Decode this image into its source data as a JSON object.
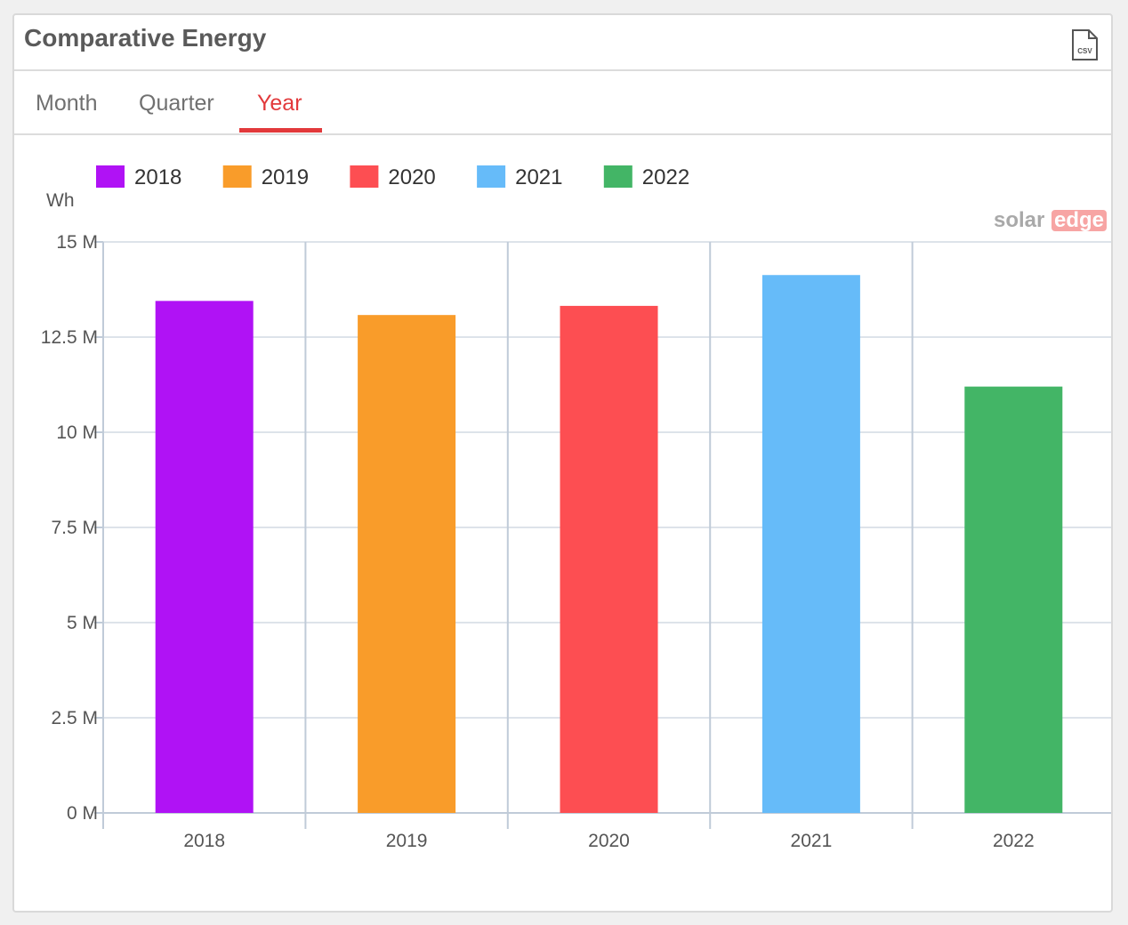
{
  "widget": {
    "title": "Comparative Energy",
    "export_icon": "csv-file-icon"
  },
  "tabs": [
    {
      "label": "Month",
      "active": false
    },
    {
      "label": "Quarter",
      "active": false
    },
    {
      "label": "Year",
      "active": true
    }
  ],
  "colors": {
    "accent": "#e2393b",
    "grid": "#dde3ea",
    "axis": "#c0cbd8"
  },
  "watermark": {
    "text_a": "solar",
    "text_b": "edge"
  },
  "chart_data": {
    "type": "bar",
    "ylabel": "Wh",
    "xlabel": "",
    "ylim": [
      0,
      15000000
    ],
    "yticks": [
      {
        "value": 0,
        "label": "0 M"
      },
      {
        "value": 2500000,
        "label": "2.5 M"
      },
      {
        "value": 5000000,
        "label": "5 M"
      },
      {
        "value": 7500000,
        "label": "7.5 M"
      },
      {
        "value": 10000000,
        "label": "10 M"
      },
      {
        "value": 12500000,
        "label": "12.5 M"
      },
      {
        "value": 15000000,
        "label": "15 M"
      }
    ],
    "categories": [
      "2018",
      "2019",
      "2020",
      "2021",
      "2022"
    ],
    "series": [
      {
        "name": "2018",
        "color": "#b012f5",
        "values": [
          13450000,
          null,
          null,
          null,
          null
        ]
      },
      {
        "name": "2019",
        "color": "#f99c2a",
        "values": [
          null,
          13080000,
          null,
          null,
          null
        ]
      },
      {
        "name": "2020",
        "color": "#fd4e52",
        "values": [
          null,
          null,
          13320000,
          null,
          null
        ]
      },
      {
        "name": "2021",
        "color": "#66bbf9",
        "values": [
          null,
          null,
          null,
          14130000,
          null
        ]
      },
      {
        "name": "2022",
        "color": "#43b566",
        "values": [
          null,
          null,
          null,
          null,
          11200000
        ]
      }
    ],
    "legend_position": "top-left",
    "grid": true
  }
}
